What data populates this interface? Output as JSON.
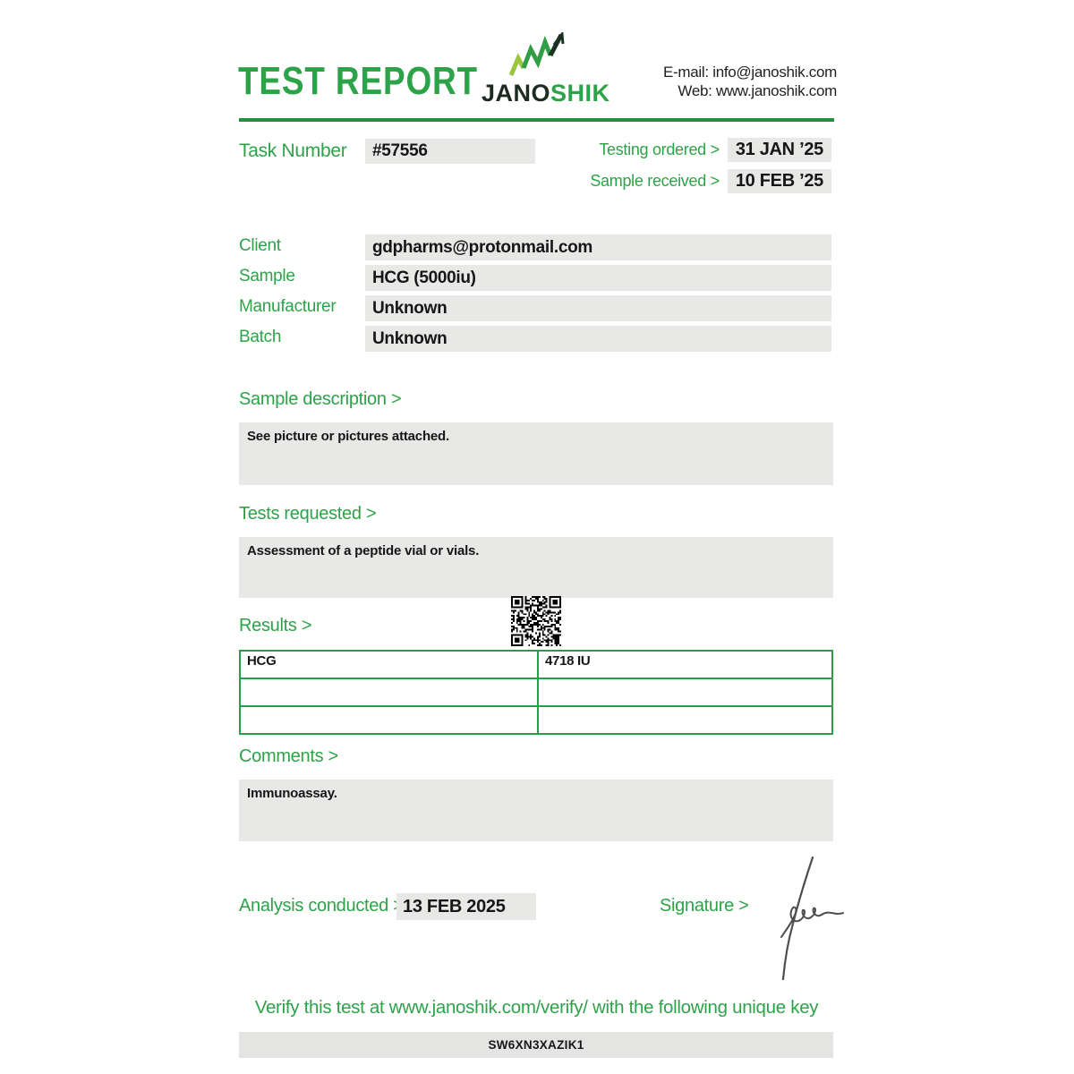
{
  "document": {
    "title": "TEST REPORT",
    "logo": {
      "icon": "chart-growth-icon",
      "text_dark": "JANO",
      "text_green": "SHIK"
    },
    "contact": {
      "email_line": "E-mail: info@janoshik.com",
      "web_line": "Web: www.janoshik.com"
    },
    "task": {
      "label": "Task Number",
      "value": "#57556"
    },
    "dates": {
      "testing_ordered": {
        "label": "Testing ordered >",
        "value": "31 JAN ’25"
      },
      "sample_received": {
        "label": "Sample received >",
        "value": "10 FEB ’25"
      }
    },
    "fields": {
      "client": {
        "label": "Client",
        "value": "gdpharms@protonmail.com"
      },
      "sample": {
        "label": "Sample",
        "value": "HCG (5000iu)"
      },
      "manufacturer": {
        "label": "Manufacturer",
        "value": "Unknown"
      },
      "batch": {
        "label": "Batch",
        "value": "Unknown"
      }
    },
    "sample_description": {
      "label": "Sample description >",
      "body": "See picture or pictures attached."
    },
    "tests_requested": {
      "label": "Tests requested >",
      "body": "Assessment of a peptide vial or vials."
    },
    "results": {
      "label": "Results >",
      "rows": [
        [
          "HCG",
          "4718 IU"
        ],
        [
          "",
          ""
        ],
        [
          "",
          ""
        ]
      ]
    },
    "comments": {
      "label": "Comments >",
      "body": "Immunoassay."
    },
    "analysis": {
      "label": "Analysis conducted >",
      "value": "13 FEB 2025"
    },
    "signature": {
      "label": "Signature >"
    },
    "footer": {
      "verify_text": "Verify this test at www.janoshik.com/verify/ with the following unique key",
      "unique_key": "SW6XN3XAZIK1"
    },
    "colors": {
      "accent_green": "#2ca348",
      "rule_green": "#1f9140",
      "table_border_green": "#2a9d4a",
      "value_box_gray": "#e8e8e6",
      "text_black": "#161616"
    }
  }
}
